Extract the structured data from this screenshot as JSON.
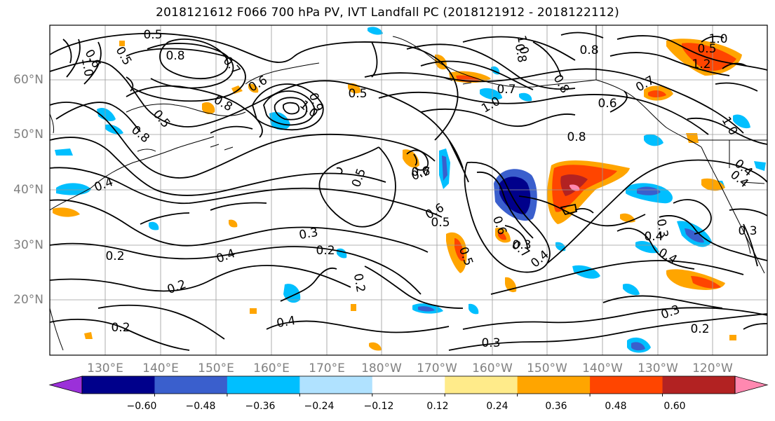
{
  "title": "2018121612 F066 700 hPa PV, IVT Landfall PC (2018121912 - 2018122112)",
  "lat_labels": [
    "60°N",
    "50°N",
    "40°N",
    "30°N",
    "20°N"
  ],
  "lon_labels": [
    "130°E",
    "140°E",
    "150°E",
    "160°E",
    "170°E",
    "180°W",
    "170°W",
    "160°W",
    "150°W",
    "140°W",
    "130°W",
    "120°W"
  ],
  "colorbar": {
    "colors": [
      "#9b30d9",
      "#00008b",
      "#3a5fcd",
      "#00bfff",
      "#b0e2ff",
      "#ffffff",
      "#ffeb8a",
      "#ffa500",
      "#ff4500",
      "#b22222",
      "#ff88b0"
    ],
    "tick_labels": [
      "−0.60",
      "−0.48",
      "−0.36",
      "−0.24",
      "−0.12",
      "0.12",
      "0.24",
      "0.36",
      "0.48",
      "0.60"
    ]
  },
  "contour_labels": [
    "0.5",
    "0.6",
    "0.8",
    "1.0",
    "0.5",
    "0.7",
    "1.0",
    "0.8",
    "0.6",
    "0.8",
    "0.8",
    "0.8",
    "0.6",
    "0.5",
    "0.9",
    "1.0",
    "0.5",
    "1.2",
    "1.0",
    "0.8",
    "0.7",
    "1.0",
    "0.8",
    "1.0",
    "0.6",
    "0.4",
    "0.3",
    "0.6",
    "0.5",
    "0.7",
    "0.3",
    "0.4",
    "0.2",
    "0.5",
    "0.5",
    "0.6",
    "0.7",
    "0.4",
    "0.4",
    "0.3",
    "0.4",
    "0.2",
    "0.2",
    "0.2",
    "0.4",
    "0.2",
    "0.3",
    "0.3",
    "0.2",
    "0.4",
    "0.3",
    "0.5",
    "0.4",
    "0.7"
  ]
}
